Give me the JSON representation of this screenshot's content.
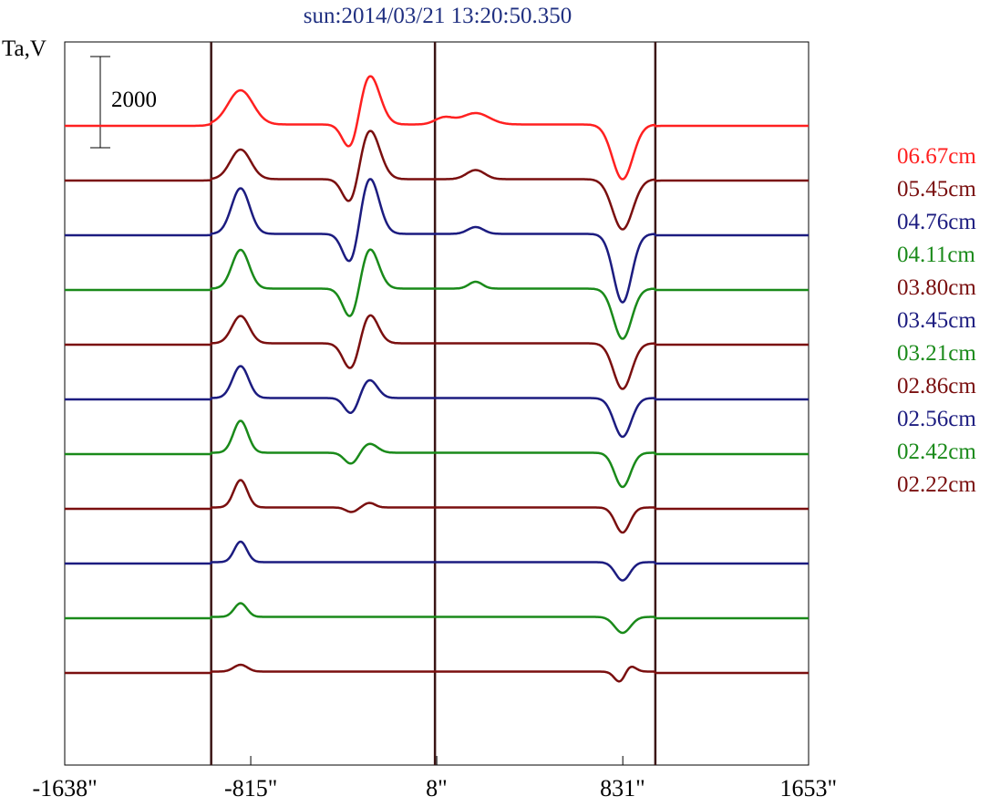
{
  "chart_data": {
    "type": "line",
    "title": "sun:2014/03/21 13:20:50.350",
    "ylabel": "Ta,V",
    "scale_bar_label": "2000",
    "scale_bar_value": 2000,
    "xlim": [
      -1638,
      1653
    ],
    "x_ticks": [
      {
        "value": -1638,
        "label": "-1638\""
      },
      {
        "value": -815,
        "label": "-815\""
      },
      {
        "value": 8,
        "label": "8\""
      },
      {
        "value": 831,
        "label": "831\""
      },
      {
        "value": 1653,
        "label": "1653\""
      }
    ],
    "vertical_markers": [
      -990,
      0,
      975
    ],
    "legend_placement": "right",
    "series": [
      {
        "name": "06.67cm",
        "color": "#ff2020",
        "features": [
          [
            -860,
            1.5,
            55
          ],
          [
            -370,
            -1.3,
            35
          ],
          [
            -290,
            2.2,
            45
          ],
          [
            40,
            0.3,
            40
          ],
          [
            180,
            0.5,
            60
          ],
          [
            830,
            -2.4,
            45
          ]
        ]
      },
      {
        "name": "05.45cm",
        "color": "#7a0f0f",
        "features": [
          [
            -860,
            1.3,
            45
          ],
          [
            -370,
            -1.3,
            35
          ],
          [
            -290,
            2.2,
            45
          ],
          [
            180,
            0.4,
            40
          ],
          [
            830,
            -2.2,
            45
          ]
        ]
      },
      {
        "name": "04.76cm",
        "color": "#1c1c80",
        "features": [
          [
            -860,
            2.0,
            40
          ],
          [
            -370,
            -1.5,
            35
          ],
          [
            -290,
            2.5,
            42
          ],
          [
            180,
            0.3,
            35
          ],
          [
            830,
            -3.0,
            40
          ]
        ]
      },
      {
        "name": "04.11cm",
        "color": "#1a8a1a",
        "features": [
          [
            -860,
            1.7,
            38
          ],
          [
            -370,
            -1.4,
            35
          ],
          [
            -290,
            1.8,
            40
          ],
          [
            180,
            0.3,
            30
          ],
          [
            830,
            -2.2,
            40
          ]
        ]
      },
      {
        "name": "03.80cm",
        "color": "#7a0f0f",
        "features": [
          [
            -860,
            1.2,
            38
          ],
          [
            -370,
            -1.2,
            35
          ],
          [
            -290,
            1.3,
            38
          ],
          [
            830,
            -2.0,
            40
          ]
        ]
      },
      {
        "name": "03.45cm",
        "color": "#1c1c80",
        "features": [
          [
            -860,
            1.4,
            35
          ],
          [
            -370,
            -0.7,
            30
          ],
          [
            -290,
            0.8,
            35
          ],
          [
            830,
            -1.7,
            38
          ]
        ]
      },
      {
        "name": "03.21cm",
        "color": "#1a8a1a",
        "features": [
          [
            -860,
            1.4,
            32
          ],
          [
            -370,
            -0.5,
            30
          ],
          [
            -290,
            0.4,
            35
          ],
          [
            830,
            -1.5,
            35
          ]
        ]
      },
      {
        "name": "02.86cm",
        "color": "#7a0f0f",
        "features": [
          [
            -860,
            1.2,
            30
          ],
          [
            -370,
            -0.2,
            25
          ],
          [
            -290,
            0.2,
            25
          ],
          [
            830,
            -1.1,
            32
          ]
        ]
      },
      {
        "name": "02.56cm",
        "color": "#1c1c80",
        "features": [
          [
            -860,
            0.9,
            28
          ],
          [
            830,
            -0.8,
            32
          ]
        ]
      },
      {
        "name": "02.42cm",
        "color": "#1a8a1a",
        "features": [
          [
            -860,
            0.6,
            28
          ],
          [
            830,
            -0.7,
            35
          ]
        ]
      },
      {
        "name": "02.22cm",
        "color": "#7a0f0f",
        "features": [
          [
            -860,
            0.3,
            30
          ],
          [
            820,
            -0.5,
            25
          ],
          [
            860,
            0.3,
            25
          ]
        ]
      }
    ]
  }
}
